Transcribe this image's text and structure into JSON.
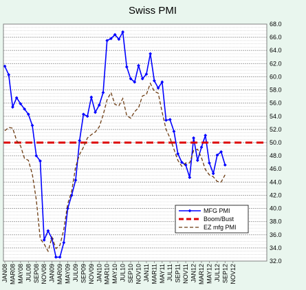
{
  "chart_data": {
    "type": "line",
    "title": "Swiss PMI",
    "ylim": [
      32.0,
      68.0
    ],
    "y_ticks": [
      "32.0",
      "34.0",
      "36.0",
      "38.0",
      "40.0",
      "42.0",
      "44.0",
      "46.0",
      "48.0",
      "50.0",
      "52.0",
      "54.0",
      "56.0",
      "58.0",
      "60.0",
      "62.0",
      "64.0",
      "66.0",
      "68.0"
    ],
    "x_tick_labels": [
      "JAN08",
      "MAR08",
      "MAY08",
      "JUL08",
      "SEP08",
      "NOV08",
      "JAN09",
      "MAR09",
      "MAY09",
      "JUL09",
      "SEP09",
      "NOV09",
      "JAN10",
      "MAR10",
      "MAY10",
      "JUL10",
      "SEP10",
      "NOV10",
      "JAN11",
      "MAR11",
      "MAY11",
      "JUL11",
      "SEP11",
      "NOV11",
      "JAN12",
      "MAR12",
      "MAY12",
      "JUL12",
      "SEP12",
      "NOV12"
    ],
    "grid": true,
    "legend_position": "bottom-right",
    "series": [
      {
        "name": "MFG PMI",
        "color": "#0000ff",
        "style": "solid-markers",
        "values": [
          61.6,
          60.3,
          55.4,
          56.8,
          55.9,
          55.1,
          54.3,
          52.6,
          48.0,
          47.2,
          35.2,
          36.6,
          35.4,
          32.6,
          32.6,
          34.8,
          40.0,
          42.0,
          44.3,
          50.3,
          54.3,
          54.0,
          56.9,
          54.6,
          55.7,
          57.6,
          65.5,
          65.8,
          66.4,
          65.7,
          66.8,
          61.5,
          59.7,
          59.2,
          61.7,
          59.7,
          60.4,
          63.5,
          59.4,
          58.3,
          59.2,
          53.4,
          53.5,
          51.7,
          48.3,
          47.0,
          46.6,
          44.7,
          50.7,
          47.3,
          49.3,
          51.1,
          46.9,
          45.3,
          48.1,
          48.6,
          46.6
        ]
      },
      {
        "name": "Boom/Bust",
        "color": "#dd0000",
        "style": "dashed",
        "values": [
          50.0,
          50.0
        ]
      },
      {
        "name": "EZ mfg PMI",
        "color": "#6b3a10",
        "style": "dashed",
        "values": [
          51.8,
          52.3,
          52.2,
          50.3,
          49.5,
          47.6,
          47.3,
          45.2,
          41.3,
          35.4,
          34.6,
          33.5,
          35.6,
          33.9,
          34.4,
          36.8,
          40.7,
          42.6,
          46.3,
          48.2,
          49.3,
          50.7,
          51.2,
          51.6,
          52.4,
          54.2,
          56.5,
          57.6,
          55.8,
          55.6,
          56.7,
          54.1,
          53.7,
          54.7,
          55.3,
          57.1,
          57.3,
          59.0,
          57.8,
          57.5,
          54.6,
          52.0,
          50.7,
          49.0,
          47.3,
          46.4,
          46.9,
          46.9,
          48.8,
          49.0,
          47.7,
          45.9,
          45.1,
          44.8,
          44.1,
          44.0,
          45.1
        ]
      }
    ]
  }
}
